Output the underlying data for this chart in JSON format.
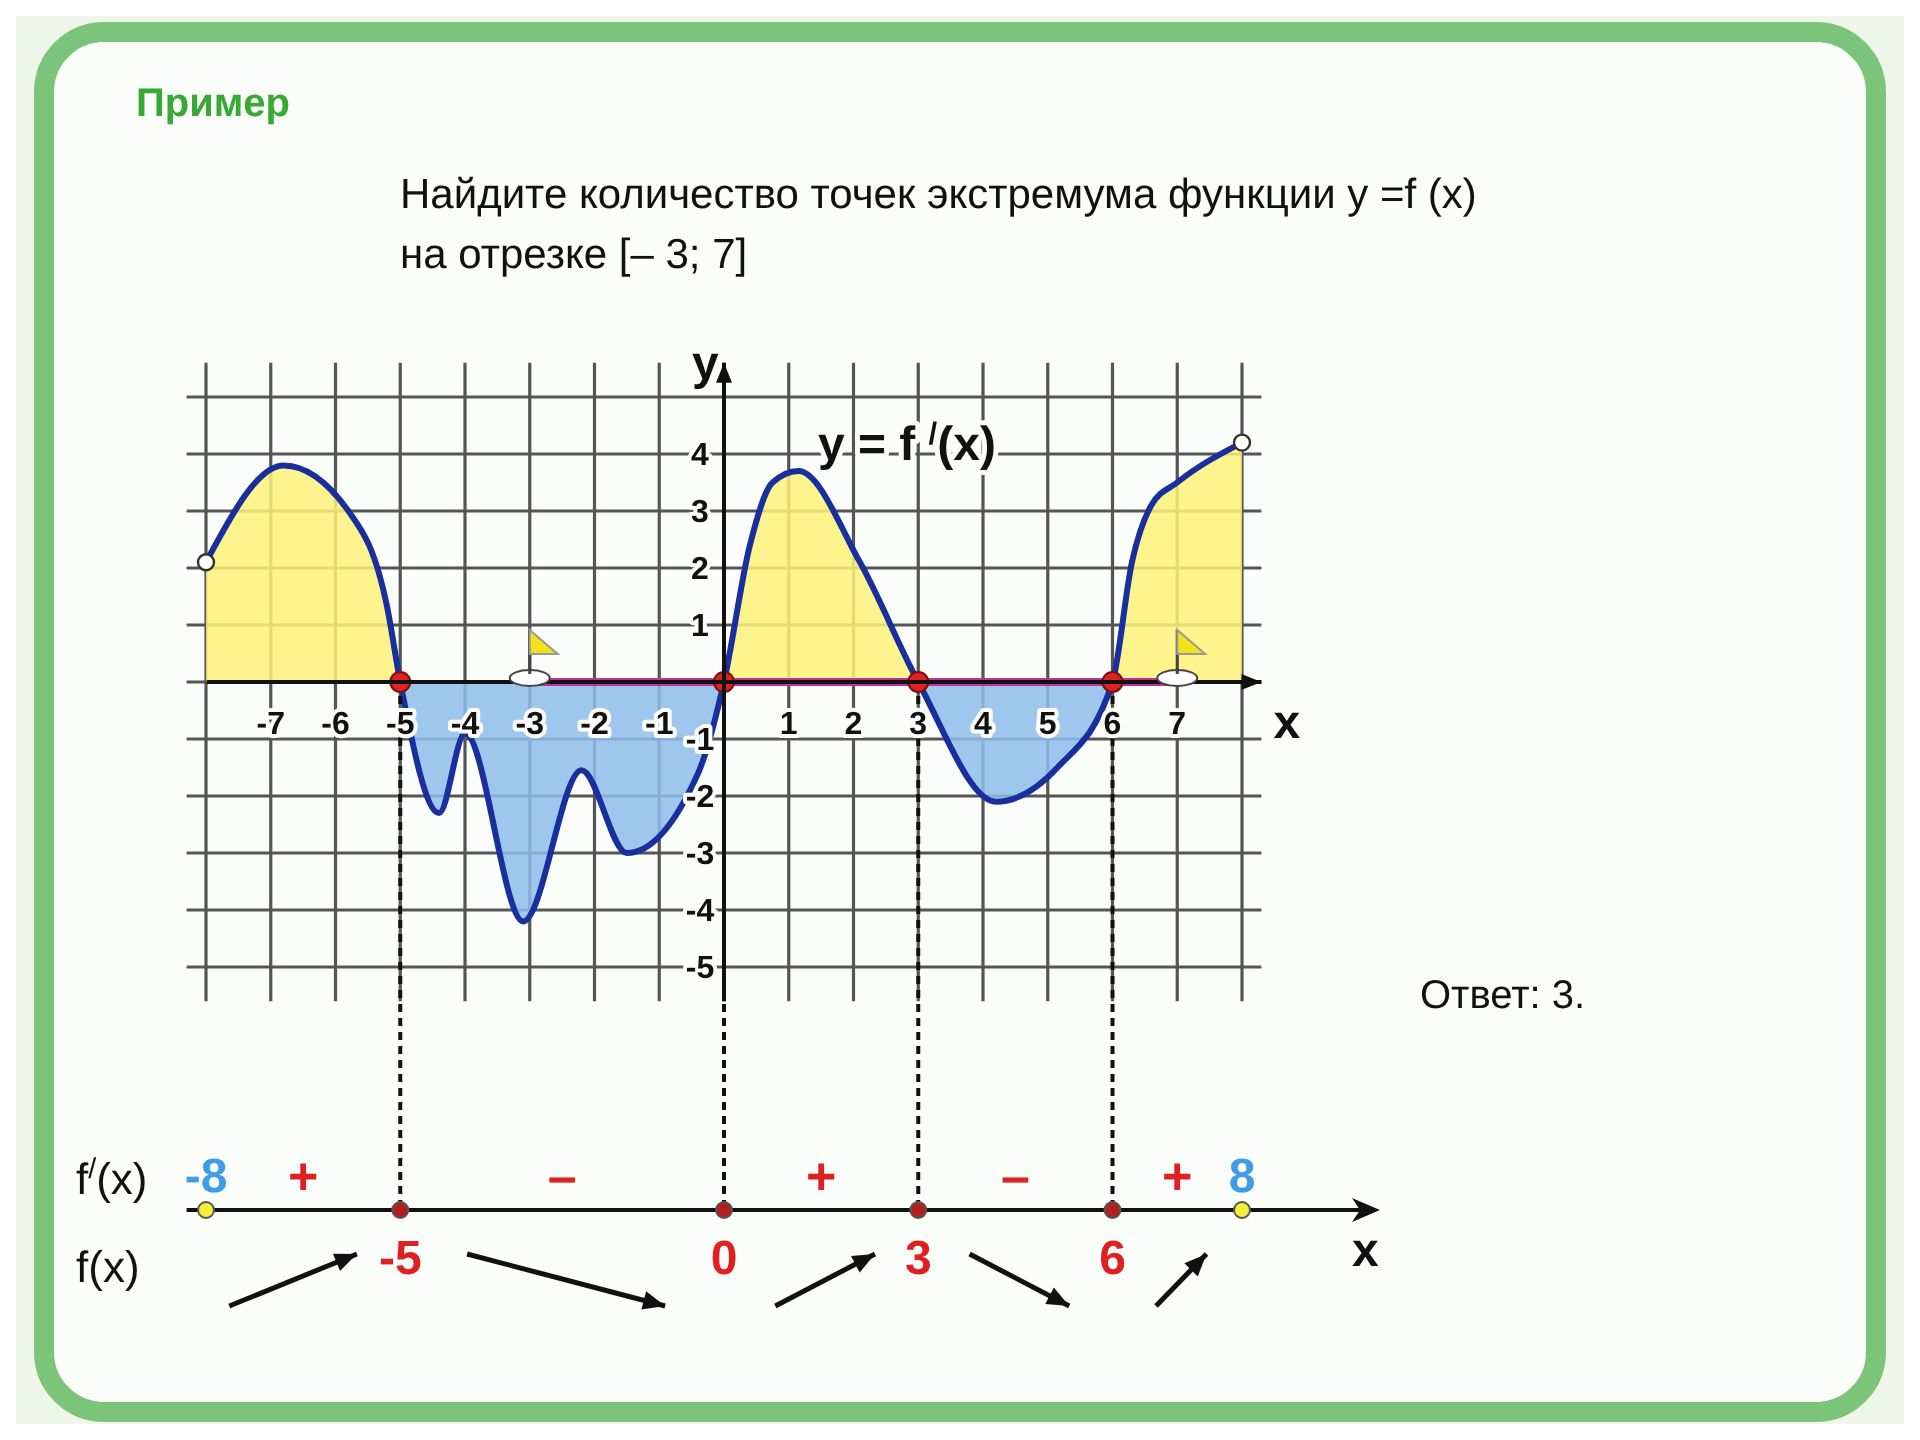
{
  "chart_data": [
    {
      "type": "area",
      "title": "Найдите количество точек экстремума функции y =f (x) на отрезке [– 3; 7]",
      "xlabel": "x",
      "ylabel": "y",
      "annotations": [
        "Пример",
        "Ответ: 3."
      ],
      "xlim": [
        -8.3,
        8.3
      ],
      "ylim": [
        -5.6,
        5.6
      ],
      "xticks": [
        {
          "value": -8,
          "label": null
        },
        -7,
        -6,
        -5,
        -4,
        -3,
        -2,
        -1,
        {
          "value": 0,
          "label": null
        },
        1,
        2,
        3,
        4,
        5,
        6,
        7,
        {
          "value": 8,
          "label": null
        }
      ],
      "yticks": [
        -5,
        -4,
        -3,
        -2,
        -1,
        {
          "value": 0,
          "label": null
        },
        1,
        2,
        3,
        4,
        {
          "value": 5,
          "label": null
        }
      ],
      "grid": true,
      "series": [
        {
          "name": "y = f $^{/}$(x)",
          "color": "#1a2f9e",
          "x": [
            -8,
            -6.8,
            -5.8,
            -5.2,
            -5,
            -4.4,
            -4,
            -3.1,
            -2.2,
            -1.5,
            -0.4,
            0,
            0.4,
            0.75,
            1.15,
            2.1,
            3,
            4.2,
            5.15,
            6,
            6.3,
            6.6,
            7,
            8
          ],
          "values": [
            2.1,
            3.8,
            3,
            1.3,
            0,
            -2.3,
            -0.9,
            -4.2,
            -1.55,
            -3,
            -1.6,
            0,
            2.4,
            3.5,
            3.7,
            2.1,
            0,
            -2.1,
            -1.5,
            0,
            2.1,
            3.1,
            3.5,
            4.2
          ]
        },
        {
          "type": "line",
          "color": "#c0309a",
          "x": [
            -3,
            7
          ],
          "values": [
            0,
            0
          ]
        },
        {
          "type": "scatter",
          "color": "#dd2222",
          "x": [
            -5,
            0,
            3,
            6
          ],
          "values": [
            0,
            0,
            0,
            0
          ]
        }
      ]
    },
    {
      "type": "other",
      "xlabel": "x",
      "categories": [
        "-8",
        "-5",
        "0",
        "3",
        "6",
        "8"
      ],
      "annotations": [
        "f$^{/}$(x)",
        "f(x)",
        "+",
        "–",
        "+",
        "–",
        "+"
      ]
    }
  ]
}
